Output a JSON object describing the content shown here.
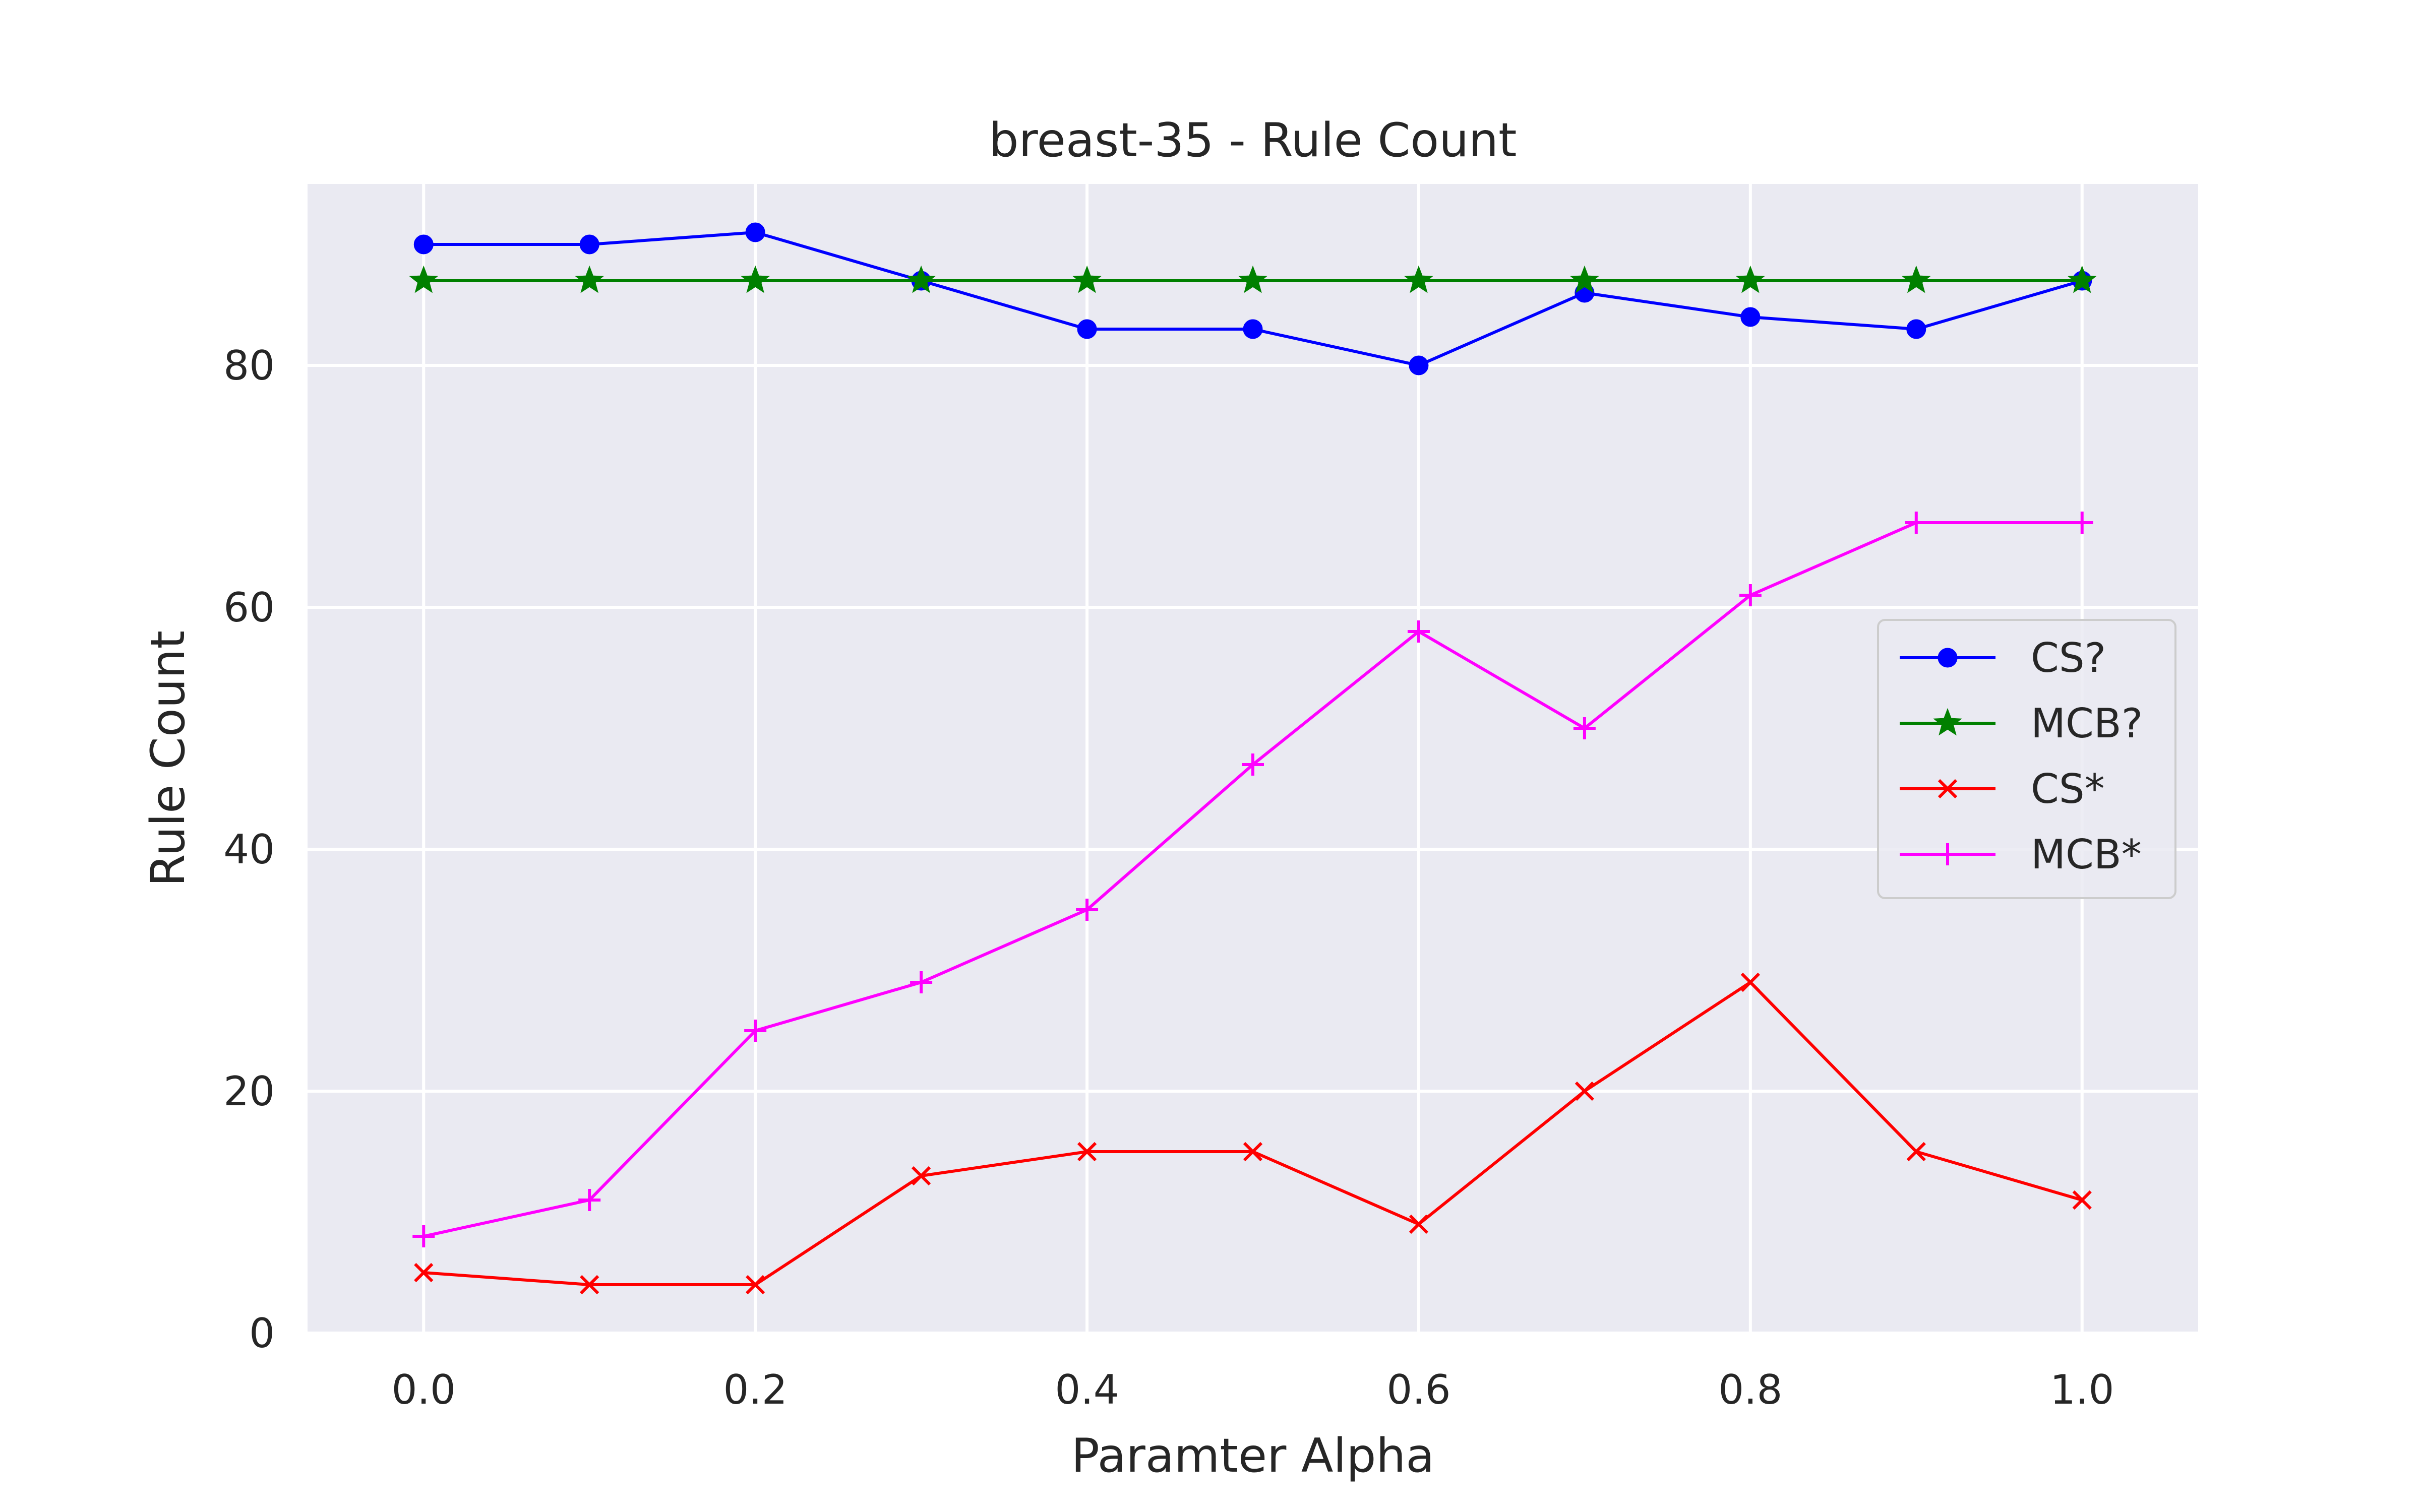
{
  "chart_data": {
    "type": "line",
    "title": "breast-35 - Rule Count",
    "xlabel": "Paramter Alpha",
    "ylabel": "Rule Count",
    "xlim": [
      -0.07,
      1.07
    ],
    "ylim": [
      0,
      95
    ],
    "x_ticks": [
      0.0,
      0.2,
      0.4,
      0.6,
      0.8,
      1.0
    ],
    "x_tick_labels": [
      "0.0",
      "0.2",
      "0.4",
      "0.6",
      "0.8",
      "1.0"
    ],
    "y_ticks": [
      0,
      20,
      40,
      60,
      80
    ],
    "y_tick_labels": [
      "0",
      "20",
      "40",
      "60",
      "80"
    ],
    "grid": true,
    "legend_position": "center-right",
    "background": "#eaeaf2",
    "x": [
      0.0,
      0.1,
      0.2,
      0.3,
      0.4,
      0.5,
      0.6,
      0.7,
      0.8,
      0.9,
      1.0
    ],
    "series": [
      {
        "name": "CS?",
        "color": "#0000ff",
        "marker": "circle",
        "values": [
          90,
          90,
          91,
          87,
          83,
          83,
          80,
          86,
          84,
          83,
          87
        ]
      },
      {
        "name": "MCB?",
        "color": "#008000",
        "marker": "star",
        "values": [
          87,
          87,
          87,
          87,
          87,
          87,
          87,
          87,
          87,
          87,
          87
        ]
      },
      {
        "name": "CS*",
        "color": "#ff0000",
        "marker": "x",
        "values": [
          5,
          4,
          4,
          13,
          15,
          15,
          9,
          20,
          29,
          15,
          11
        ]
      },
      {
        "name": "MCB*",
        "color": "#ff00ff",
        "marker": "plus",
        "values": [
          8,
          11,
          25,
          29,
          35,
          47,
          58,
          50,
          61,
          67,
          67
        ]
      }
    ]
  }
}
